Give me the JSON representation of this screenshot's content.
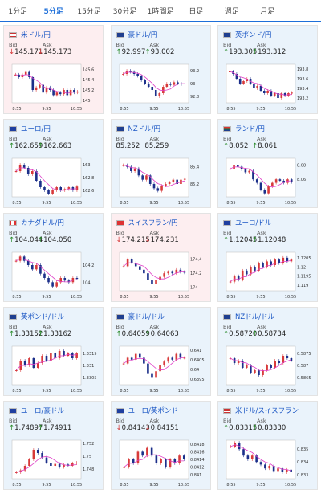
{
  "tabs": [
    "1分足",
    "5分足",
    "15分足",
    "30分足",
    "1時間足",
    "日足",
    "週足",
    "月足"
  ],
  "active_tab": 1,
  "labels": {
    "bid": "Bid",
    "ask": "Ask"
  },
  "colors": {
    "up_candle": "#d83a3a",
    "down_candle": "#1c2f8a",
    "ma_line": "#e040c8",
    "up_arrow": "#2a8a2a",
    "down_arrow": "#d43232",
    "tab_accent": "#1e6fd9"
  },
  "cards": [
    {
      "title": "米ドル/円",
      "flag_icon": "us-flag-icon",
      "bid": "145.171",
      "ask": "145.173",
      "direction": "down",
      "bg": "down",
      "chart_data": {
        "type": "candlestick",
        "x_ticks": [
          "8:55",
          "9:55",
          "10:55"
        ],
        "y_ticks": [
          "145.6",
          "145.4",
          "145.2",
          "145"
        ],
        "ylim": [
          144.95,
          145.7
        ],
        "trend": [
          145.5,
          145.45,
          145.5,
          145.55,
          145.45,
          145.2,
          145.25,
          145.3,
          145.15,
          145.25,
          145.2,
          145.1,
          145.15,
          145.12,
          145.2,
          145.1,
          145.2,
          145.15,
          145.17
        ]
      }
    },
    {
      "title": "豪ドル/円",
      "flag_icon": "au-flag-icon",
      "bid": "92.997",
      "ask": "93.002",
      "direction": "up",
      "bg": "up",
      "chart_data": {
        "type": "candlestick",
        "x_ticks": [
          "8:55",
          "9:55",
          "10:55"
        ],
        "y_ticks": [
          "93.2",
          "93",
          "92.8"
        ],
        "ylim": [
          92.7,
          93.3
        ],
        "trend": [
          93.15,
          93.2,
          93.18,
          93.15,
          93.12,
          93.05,
          93.0,
          92.95,
          92.9,
          92.8,
          92.85,
          92.95,
          93.0,
          92.98,
          93.02,
          93.0,
          92.99,
          93.0
        ]
      }
    },
    {
      "title": "英ポンド/円",
      "flag_icon": "uk-flag-icon",
      "bid": "193.305",
      "ask": "193.312",
      "direction": "up",
      "bg": "up",
      "chart_data": {
        "type": "candlestick",
        "x_ticks": [
          "8:55",
          "9:55",
          "10:55"
        ],
        "y_ticks": [
          "193.8",
          "193.6",
          "193.4",
          "193.2"
        ],
        "ylim": [
          193.1,
          193.9
        ],
        "trend": [
          193.75,
          193.7,
          193.6,
          193.5,
          193.55,
          193.6,
          193.5,
          193.4,
          193.45,
          193.35,
          193.3,
          193.35,
          193.25,
          193.3,
          193.2,
          193.3,
          193.25,
          193.3,
          193.31
        ]
      }
    },
    {
      "title": "ユーロ/円",
      "flag_icon": "eu-flag-icon",
      "bid": "162.659",
      "ask": "162.663",
      "direction": "up",
      "bg": "up",
      "chart_data": {
        "type": "candlestick",
        "x_ticks": [
          "8:55",
          "9:55",
          "10:55"
        ],
        "y_ticks": [
          "163",
          "162.8",
          "162.6"
        ],
        "ylim": [
          162.5,
          163.1
        ],
        "trend": [
          162.9,
          163.0,
          162.95,
          162.85,
          162.9,
          162.75,
          162.65,
          162.6,
          162.55,
          162.6,
          162.65,
          162.6,
          162.62,
          162.65,
          162.6,
          162.66
        ]
      }
    },
    {
      "title": "NZドル/円",
      "flag_icon": "nz-flag-icon",
      "bid": "85.252",
      "ask": "85.259",
      "direction": "none",
      "bg": "up",
      "chart_data": {
        "type": "candlestick",
        "x_ticks": [
          "8:55",
          "9:55",
          "10:55"
        ],
        "y_ticks": [
          "85.4",
          "85.2"
        ],
        "ylim": [
          85.05,
          85.5
        ],
        "trend": [
          85.42,
          85.4,
          85.35,
          85.38,
          85.3,
          85.25,
          85.3,
          85.2,
          85.15,
          85.12,
          85.18,
          85.2,
          85.22,
          85.25,
          85.2,
          85.25,
          85.26
        ]
      }
    },
    {
      "title": "ランド/円",
      "flag_icon": "za-flag-icon",
      "bid": "8.052",
      "ask": "8.061",
      "direction": "up",
      "bg": "up",
      "chart_data": {
        "type": "candlestick",
        "x_ticks": [
          "8:55",
          "9:55",
          "10:55"
        ],
        "y_ticks": [
          "8.08",
          "8.06"
        ],
        "ylim": [
          8.035,
          8.09
        ],
        "trend": [
          8.075,
          8.08,
          8.078,
          8.074,
          8.07,
          8.072,
          8.06,
          8.055,
          8.045,
          8.04,
          8.05,
          8.055,
          8.06,
          8.058,
          8.055,
          8.06,
          8.056
        ]
      }
    },
    {
      "title": "カナダドル/円",
      "flag_icon": "ca-flag-icon",
      "bid": "104.044",
      "ask": "104.050",
      "direction": "up",
      "bg": "up",
      "chart_data": {
        "type": "candlestick",
        "x_ticks": [
          "8:55",
          "9:55",
          "10:55"
        ],
        "y_ticks": [
          "104.2",
          "104"
        ],
        "ylim": [
          103.9,
          104.35
        ],
        "trend": [
          104.25,
          104.3,
          104.25,
          104.2,
          104.15,
          104.2,
          104.1,
          104.05,
          104.0,
          103.95,
          104.0,
          104.05,
          104.02,
          104.0,
          104.05,
          104.04
        ]
      }
    },
    {
      "title": "スイスフラン/円",
      "flag_icon": "ch-flag-icon",
      "bid": "174.215",
      "ask": "174.231",
      "direction": "down",
      "bg": "down",
      "chart_data": {
        "type": "candlestick",
        "x_ticks": [
          "8:55",
          "9:55",
          "10:55"
        ],
        "y_ticks": [
          "174.4",
          "174.2",
          "174"
        ],
        "ylim": [
          173.95,
          174.5
        ],
        "trend": [
          174.3,
          174.4,
          174.35,
          174.3,
          174.25,
          174.2,
          174.1,
          174.05,
          174.1,
          174.15,
          174.2,
          174.22,
          174.2,
          174.25,
          174.22,
          174.21
        ]
      }
    },
    {
      "title": "ユーロ/ドル",
      "flag_icon": "eu-flag-icon",
      "bid": "1.12045",
      "ask": "1.12048",
      "direction": "up",
      "bg": "up",
      "chart_data": {
        "type": "candlestick",
        "x_ticks": [
          "8:55",
          "9:55",
          "10:55"
        ],
        "y_ticks": [
          "1.1205",
          "1.12",
          "1.1195",
          "1.119"
        ],
        "ylim": [
          1.1187,
          1.1208
        ],
        "trend": [
          1.1192,
          1.1195,
          1.1193,
          1.1198,
          1.1196,
          1.12,
          1.1198,
          1.1202,
          1.12,
          1.1203,
          1.1201,
          1.1204,
          1.1202,
          1.1205,
          1.1203,
          1.1204
        ]
      }
    },
    {
      "title": "英ポンド/ドル",
      "flag_icon": "uk-flag-icon",
      "bid": "1.33152",
      "ask": "1.33162",
      "direction": "up",
      "bg": "up",
      "chart_data": {
        "type": "candlestick",
        "x_ticks": [
          "8:55",
          "9:55",
          "10:55"
        ],
        "y_ticks": [
          "1.3315",
          "1.331",
          "1.3305"
        ],
        "ylim": [
          1.3302,
          1.3318
        ],
        "trend": [
          1.3308,
          1.3312,
          1.331,
          1.3313,
          1.3309,
          1.3311,
          1.3314,
          1.3312,
          1.3315,
          1.3313,
          1.3316,
          1.3314,
          1.3315,
          1.3313,
          1.3315
        ]
      }
    },
    {
      "title": "豪ドル/ドル",
      "flag_icon": "au-flag-icon",
      "bid": "0.64059",
      "ask": "0.64063",
      "direction": "up",
      "bg": "up",
      "chart_data": {
        "type": "candlestick",
        "x_ticks": [
          "8:55",
          "9:55",
          "10:55"
        ],
        "y_ticks": [
          "0.641",
          "0.6405",
          "0.64",
          "0.6395"
        ],
        "ylim": [
          0.6392,
          0.6412
        ],
        "trend": [
          0.6403,
          0.6406,
          0.6405,
          0.6408,
          0.6406,
          0.6403,
          0.6398,
          0.6396,
          0.6399,
          0.6402,
          0.6404,
          0.6406,
          0.6405,
          0.6408,
          0.6406,
          0.6406
        ]
      }
    },
    {
      "title": "NZドル/ドル",
      "flag_icon": "nz-flag-icon",
      "bid": "0.58720",
      "ask": "0.58734",
      "direction": "up",
      "bg": "up",
      "chart_data": {
        "type": "candlestick",
        "x_ticks": [
          "8:55",
          "9:55",
          "10:55"
        ],
        "y_ticks": [
          "0.5875",
          "0.587",
          "0.5865"
        ],
        "ylim": [
          0.5862,
          0.5878
        ],
        "trend": [
          0.5873,
          0.5871,
          0.5872,
          0.5869,
          0.587,
          0.5867,
          0.5868,
          0.5866,
          0.5868,
          0.587,
          0.5869,
          0.5872,
          0.5871,
          0.5874,
          0.5873,
          0.5872
        ]
      }
    },
    {
      "title": "ユーロ/豪ドル",
      "flag_icon": "eu-flag-icon",
      "bid": "1.74897",
      "ask": "1.74911",
      "direction": "up",
      "bg": "up",
      "chart_data": {
        "type": "candlestick",
        "x_ticks": [
          "8:55",
          "9:55",
          "10:55"
        ],
        "y_ticks": [
          "1.752",
          "1.75",
          "1.748"
        ],
        "ylim": [
          1.7465,
          1.7525
        ],
        "trend": [
          1.7475,
          1.7478,
          1.7485,
          1.7495,
          1.751,
          1.7505,
          1.7498,
          1.749,
          1.7485,
          1.7488,
          1.7483,
          1.7487,
          1.7485,
          1.7489,
          1.749
        ]
      }
    },
    {
      "title": "ユーロ/英ポンド",
      "flag_icon": "eu-flag-icon",
      "bid": "0.84143",
      "ask": "0.84151",
      "direction": "down",
      "bg": "up",
      "chart_data": {
        "type": "candlestick",
        "x_ticks": [
          "8:55",
          "9:55",
          "10:55"
        ],
        "y_ticks": [
          "0.8418",
          "0.8416",
          "0.8414",
          "0.8412",
          "0.841"
        ],
        "ylim": [
          0.8409,
          0.8419
        ],
        "trend": [
          0.8412,
          0.8414,
          0.8413,
          0.8416,
          0.8415,
          0.8417,
          0.8415,
          0.8413,
          0.8414,
          0.8412,
          0.8414,
          0.8413,
          0.8415,
          0.8414
        ]
      }
    },
    {
      "title": "米ドル/スイスフラン",
      "flag_icon": "us-flag-icon",
      "bid": "0.83315",
      "ask": "0.83330",
      "direction": "up",
      "bg": "up",
      "chart_data": {
        "type": "candlestick",
        "x_ticks": [
          "8:55",
          "9:55",
          "10:55"
        ],
        "y_ticks": [
          "0.835",
          "0.834",
          "0.833"
        ],
        "ylim": [
          0.8327,
          0.8357
        ],
        "trend": [
          0.8352,
          0.8355,
          0.835,
          0.8345,
          0.8342,
          0.8345,
          0.834,
          0.8338,
          0.8335,
          0.8337,
          0.8333,
          0.8335,
          0.8332,
          0.8334,
          0.8332
        ]
      }
    }
  ]
}
